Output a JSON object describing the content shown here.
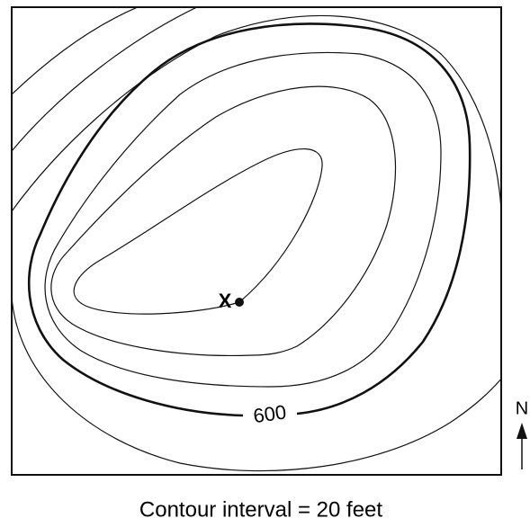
{
  "map": {
    "point_label": "X",
    "contour_label": "600",
    "north_label": "N",
    "caption": "Contour interval = 20 feet"
  }
}
